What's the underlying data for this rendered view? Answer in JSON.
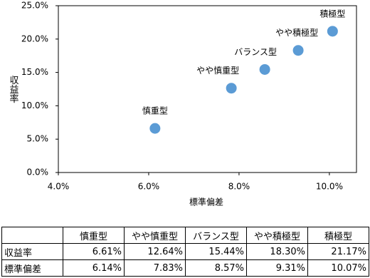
{
  "chart_data": {
    "type": "scatter",
    "xlabel": "標準偏差",
    "ylabel": "収益率",
    "names": [
      "慎重型",
      "やや慎重型",
      "バランス型",
      "やや積極型",
      "積極型"
    ],
    "x": [
      6.14,
      7.83,
      8.57,
      9.31,
      10.07
    ],
    "y": [
      6.61,
      12.64,
      15.44,
      18.3,
      21.17
    ],
    "color": "#5b9bd5",
    "xlim": [
      4,
      10.6
    ],
    "ylim": [
      0,
      25
    ],
    "xticks": [
      {
        "value": 4,
        "label": "4.0%"
      },
      {
        "value": 6,
        "label": "6.0%"
      },
      {
        "value": 8,
        "label": "8.0%"
      },
      {
        "value": 10,
        "label": "10.0%"
      }
    ],
    "yticks": [
      {
        "value": 0,
        "label": "0.0%"
      },
      {
        "value": 5,
        "label": "5.0%"
      },
      {
        "value": 10,
        "label": "10.0%"
      },
      {
        "value": 15,
        "label": "15.0%"
      },
      {
        "value": 20,
        "label": "20.0%"
      },
      {
        "value": 25,
        "label": "25.0%"
      }
    ]
  },
  "table": {
    "columns": [
      "慎重型",
      "やや慎重型",
      "バランス型",
      "やや積極型",
      "積極型"
    ],
    "rows": [
      {
        "label": "収益率",
        "cells": [
          "6.61%",
          "12.64%",
          "15.44%",
          "18.30%",
          "21.17%"
        ]
      },
      {
        "label": "標準偏差",
        "cells": [
          "6.14%",
          "7.83%",
          "8.57%",
          "9.31%",
          "10.07%"
        ]
      }
    ]
  }
}
